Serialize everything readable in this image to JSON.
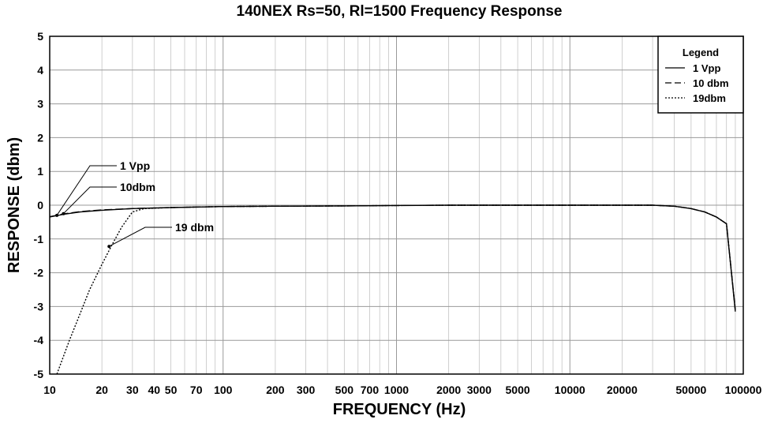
{
  "chart_data": {
    "type": "line",
    "title": "140NEX Rs=50, Rl=1500 Frequency Response",
    "xlabel": "FREQUENCY (Hz)",
    "ylabel": "RESPONSE (dbm)",
    "x_scale": "log",
    "xlim": [
      10,
      100000
    ],
    "ylim": [
      -5,
      5
    ],
    "grid": true,
    "x_ticks": [
      10,
      20,
      30,
      40,
      50,
      70,
      100,
      200,
      300,
      500,
      700,
      1000,
      2000,
      3000,
      5000,
      10000,
      20000,
      50000,
      100000
    ],
    "x_tick_labels": [
      "10",
      "20",
      "30",
      "40",
      "50",
      "70",
      "100",
      "200",
      "300",
      "500",
      "700",
      "1000",
      "2000",
      "3000",
      "5000",
      "10000",
      "20000",
      "50000",
      "100000"
    ],
    "y_ticks": [
      -5,
      -4,
      -3,
      -2,
      -1,
      0,
      1,
      2,
      3,
      4,
      5
    ],
    "legend": {
      "title": "Legend",
      "position": "top-right",
      "entries": [
        "1 Vpp",
        "10 dbm",
        "19dbm"
      ]
    },
    "series": [
      {
        "name": "1 Vpp",
        "style": "solid",
        "x": [
          10,
          12,
          15,
          20,
          30,
          50,
          100,
          200,
          500,
          1000,
          2000,
          5000,
          10000,
          20000,
          30000,
          40000,
          50000,
          60000,
          70000,
          80000,
          90000
        ],
        "y": [
          -0.35,
          -0.27,
          -0.2,
          -0.15,
          -0.1,
          -0.07,
          -0.04,
          -0.03,
          -0.02,
          -0.01,
          0,
          0,
          0,
          0,
          0,
          -0.03,
          -0.1,
          -0.2,
          -0.35,
          -0.55,
          -3.15
        ]
      },
      {
        "name": "10 dbm",
        "style": "dashed",
        "x": [
          10,
          12,
          15,
          20,
          30,
          50,
          100,
          200,
          500,
          1000,
          2000,
          5000,
          10000,
          20000,
          30000,
          40000,
          50000,
          60000,
          70000,
          80000,
          90000
        ],
        "y": [
          -0.34,
          -0.26,
          -0.19,
          -0.14,
          -0.1,
          -0.07,
          -0.04,
          -0.03,
          -0.02,
          -0.01,
          0,
          0,
          0,
          0,
          0,
          -0.03,
          -0.1,
          -0.2,
          -0.35,
          -0.55,
          -3.1
        ]
      },
      {
        "name": "19dbm",
        "style": "dotted",
        "x": [
          11,
          13,
          15,
          17,
          20,
          23,
          26,
          30,
          35,
          50,
          100,
          200,
          500,
          1000,
          2000,
          5000,
          10000,
          20000,
          30000,
          40000,
          50000,
          60000,
          70000,
          80000,
          90000
        ],
        "y": [
          -5,
          -4.0,
          -3.2,
          -2.5,
          -1.75,
          -1.15,
          -0.65,
          -0.2,
          -0.1,
          -0.07,
          -0.04,
          -0.03,
          -0.02,
          -0.01,
          0,
          0,
          0,
          0,
          0,
          -0.03,
          -0.1,
          -0.2,
          -0.35,
          -0.55,
          -3.1
        ]
      }
    ],
    "annotations": [
      {
        "text": "1 Vpp",
        "point": [
          11,
          -0.3
        ]
      },
      {
        "text": "10dbm",
        "point": [
          12,
          -0.25
        ]
      },
      {
        "text": "19 dbm",
        "point": [
          22,
          -1.22
        ]
      }
    ]
  }
}
